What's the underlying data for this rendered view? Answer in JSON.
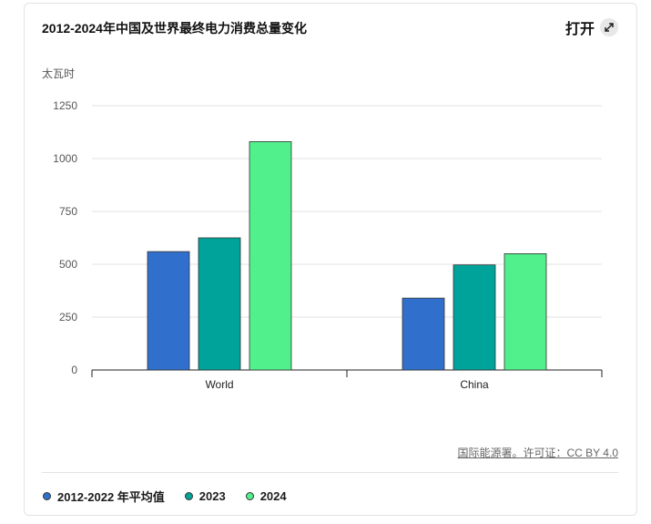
{
  "header": {
    "title": "2012-2024年中国及世界最终电力消费总量变化",
    "open_label": "打开"
  },
  "source_text": "国际能源署。许可证：CC BY 4.0",
  "chart_data": {
    "type": "bar",
    "title": "2012-2024年中国及世界最终电力消费总量变化",
    "ylabel": "太瓦时",
    "xlabel": "",
    "categories": [
      "World",
      "China"
    ],
    "ylim": [
      0,
      1250
    ],
    "yticks": [
      0,
      250,
      500,
      750,
      1000,
      1250
    ],
    "grid": true,
    "legend_position": "bottom-left",
    "series": [
      {
        "name": "2012-2022 年平均值",
        "color": "#3070cc",
        "values": [
          560,
          340
        ]
      },
      {
        "name": "2023",
        "color": "#00a39a",
        "values": [
          625,
          497
        ]
      },
      {
        "name": "2024",
        "color": "#52f08c",
        "values": [
          1080,
          550
        ]
      }
    ]
  }
}
